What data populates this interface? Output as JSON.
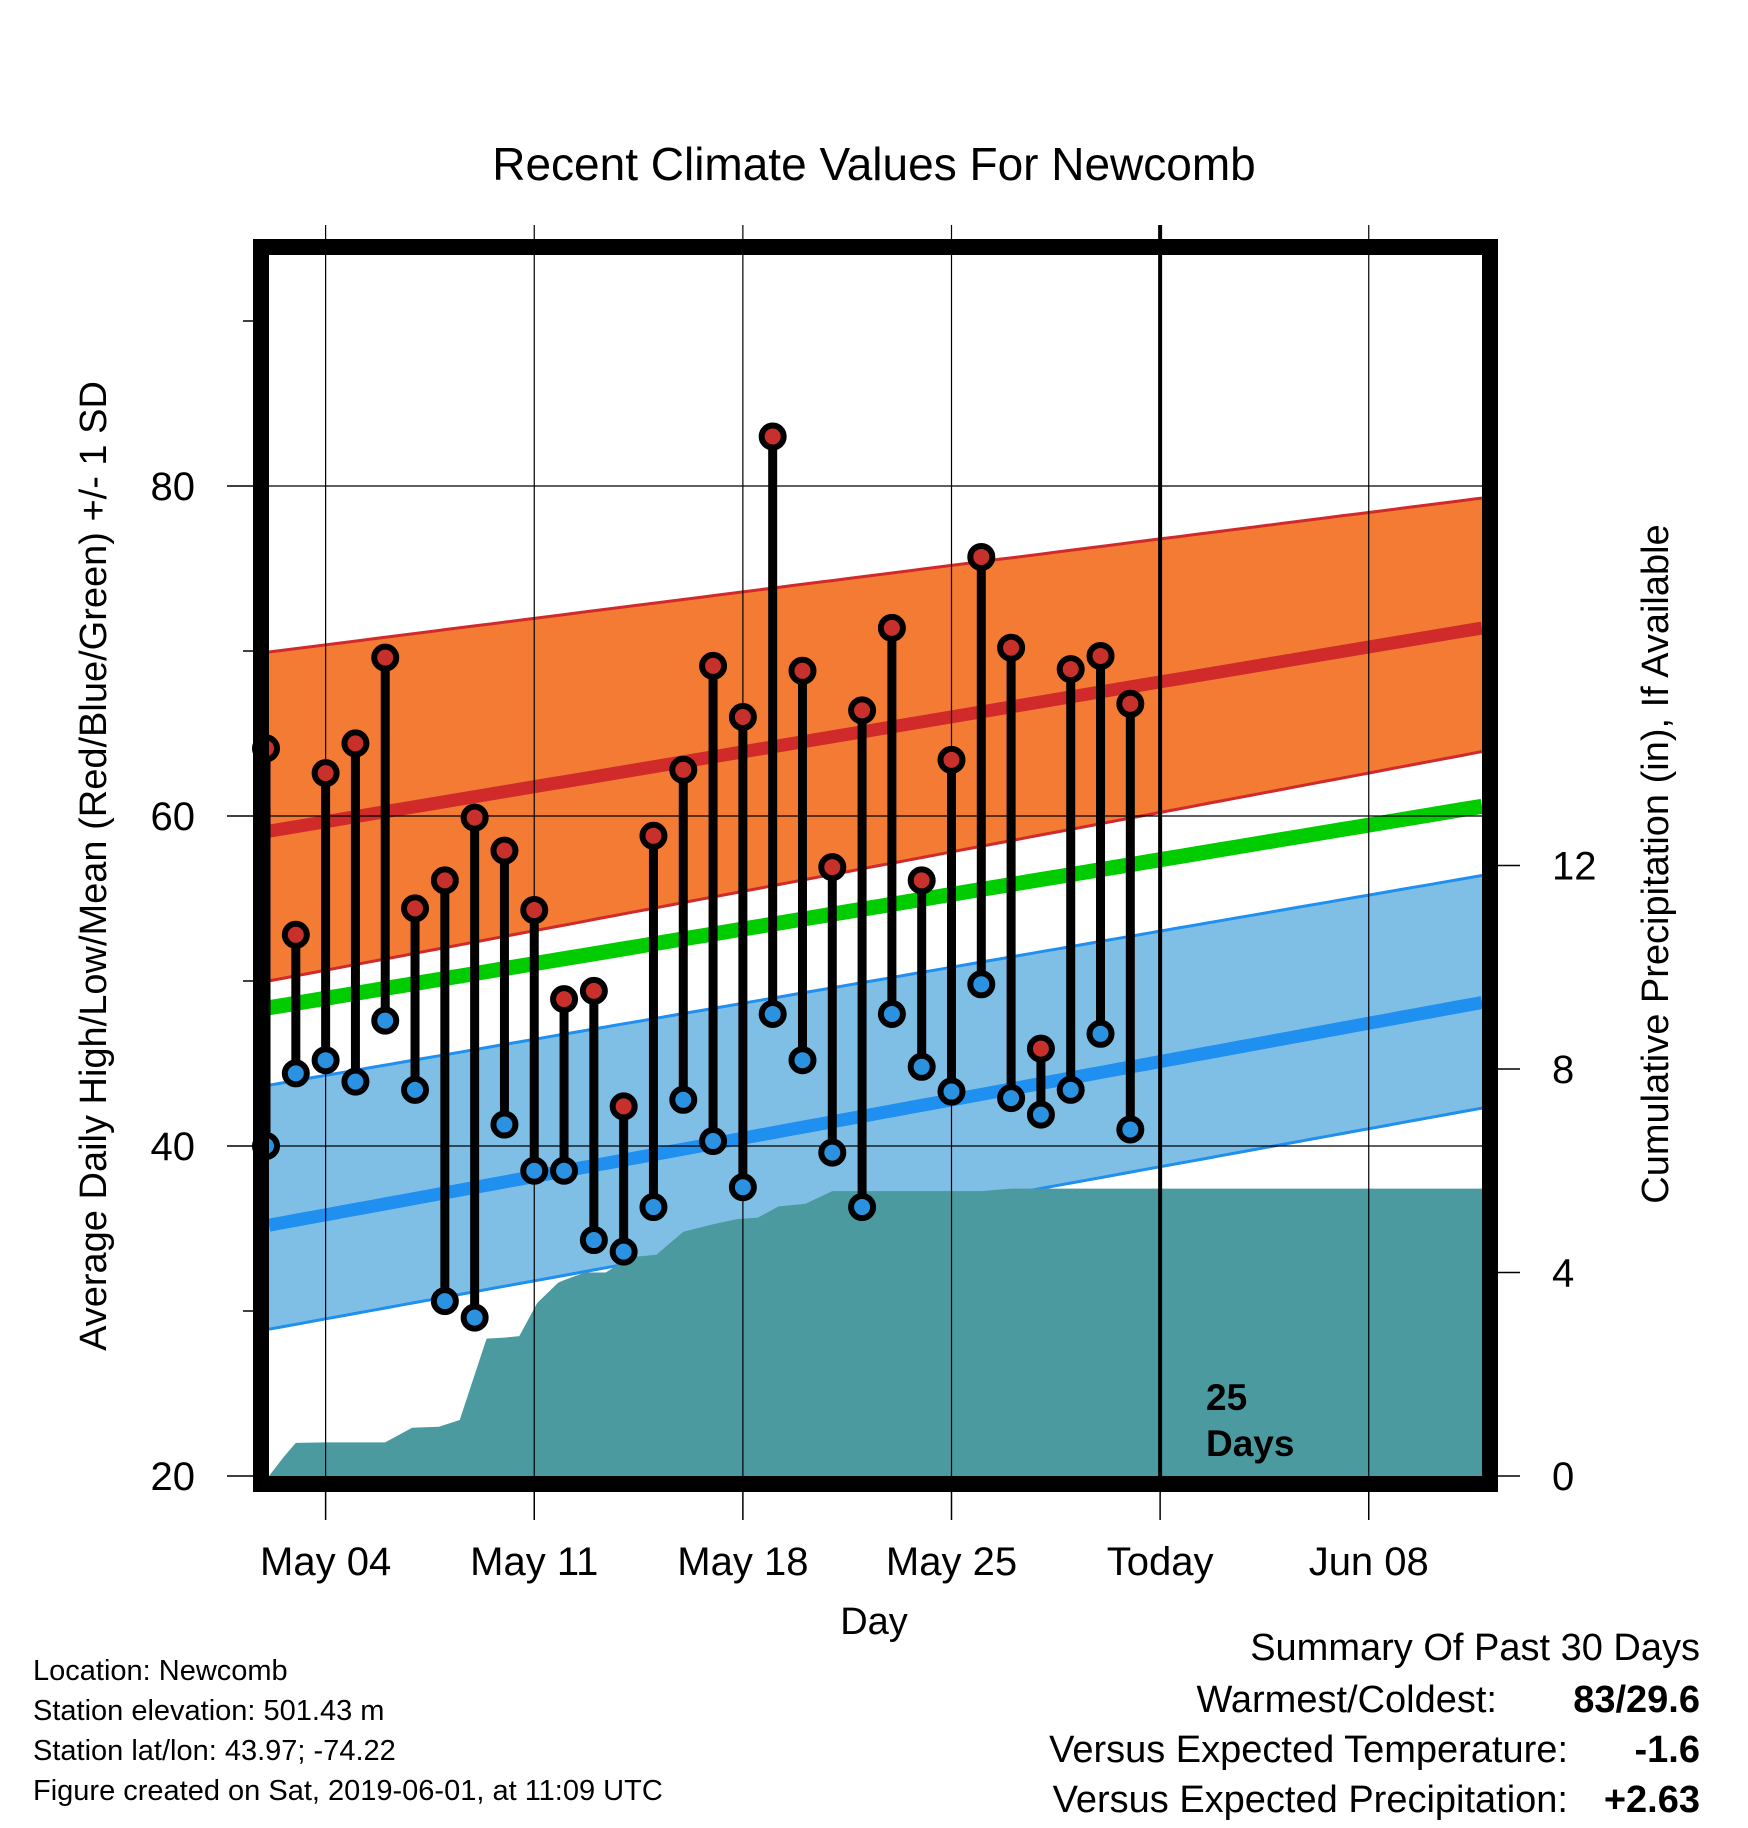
{
  "chart_data": {
    "type": "line",
    "title": "Recent Climate Values For Newcomb",
    "xlabel": "Day",
    "ylabel": "Average Daily High/Low/Mean (Red/Blue/Green) +/- 1 SD",
    "ylabel_right": "Cumulative Precipitation (in), If Available",
    "ylim": [
      20,
      94
    ],
    "ylim_right": [
      0,
      24
    ],
    "yticks": [
      20,
      40,
      60,
      80
    ],
    "yticks_right": [
      0,
      4,
      8,
      12
    ],
    "xlim": [
      -1.9,
      38.8
    ],
    "x_tick_labels": [
      {
        "x": 0,
        "label": "May 04"
      },
      {
        "x": 7,
        "label": "May 11"
      },
      {
        "x": 14,
        "label": "May 18"
      },
      {
        "x": 21,
        "label": "May 25"
      },
      {
        "x": 28,
        "label": "Today"
      },
      {
        "x": 35,
        "label": "Jun 08"
      }
    ],
    "today_x": 28,
    "today_label_top": "25",
    "today_label_bottom": "Days",
    "x_note": "x = days offset from May 04",
    "normals": {
      "x": [
        -2.5,
        38.5
      ],
      "high_mean": [
        58.9,
        71.3
      ],
      "high_upper": [
        69.8,
        79.2
      ],
      "high_lower": [
        49.8,
        63.8
      ],
      "avg_mean": [
        48.2,
        60.5
      ],
      "low_mean": [
        35.0,
        48.6
      ],
      "low_upper": [
        43.5,
        56.3
      ],
      "low_lower": [
        28.7,
        42.2
      ]
    },
    "daily": {
      "x": [
        -2,
        -1,
        0,
        1,
        2,
        3,
        4,
        5,
        6,
        7,
        8,
        9,
        10,
        11,
        12,
        13,
        14,
        15,
        16,
        17,
        18,
        19,
        20,
        21,
        22,
        23,
        24,
        25,
        26,
        27,
        28
      ],
      "high": [
        64.1,
        52.8,
        62.6,
        64.4,
        69.6,
        54.4,
        56.1,
        59.9,
        57.9,
        54.3,
        48.9,
        49.4,
        42.4,
        58.8,
        62.8,
        69.1,
        66.0,
        83.0,
        68.8,
        56.9,
        66.4,
        71.4,
        56.1,
        63.4,
        75.7,
        70.2,
        45.9,
        68.9,
        69.7,
        66.8,
        null
      ],
      "low": [
        40.0,
        44.4,
        45.2,
        43.9,
        47.6,
        43.4,
        30.6,
        29.6,
        41.3,
        38.5,
        38.5,
        34.3,
        33.6,
        36.3,
        42.8,
        40.3,
        37.5,
        48.0,
        45.2,
        39.6,
        36.3,
        48.0,
        44.8,
        43.3,
        49.8,
        42.9,
        41.9,
        43.4,
        46.8,
        41.0,
        null
      ]
    },
    "precip_cumulative": {
      "x": [
        -2.2,
        -1.4,
        -1.0,
        0,
        1,
        2,
        2.9,
        3.8,
        4.5,
        5.4,
        6.0,
        6.5,
        7.1,
        7.8,
        8.0,
        8.7,
        9.4,
        10.2,
        11.1,
        12.0,
        13.0,
        13.8,
        14.5,
        15.2,
        16.1,
        17.0,
        18.0,
        19.0,
        20.1,
        21.0,
        22.0,
        23.0,
        24.0,
        25.0,
        26.0,
        27.0,
        28.0,
        29.0,
        30.0,
        32.0,
        34.0,
        36.0,
        38.8
      ],
      "values": [
        0.0,
        0.38,
        0.65,
        0.66,
        0.66,
        0.66,
        0.95,
        0.97,
        1.1,
        2.7,
        2.72,
        2.75,
        3.4,
        3.8,
        3.85,
        4.0,
        4.0,
        4.3,
        4.35,
        4.8,
        4.95,
        5.05,
        5.08,
        5.3,
        5.35,
        5.6,
        5.6,
        5.6,
        5.6,
        5.6,
        5.6,
        5.65,
        5.65,
        5.65,
        5.65,
        5.65,
        5.65,
        5.65,
        5.65,
        5.65,
        5.65,
        5.65,
        5.65
      ]
    }
  },
  "colors": {
    "high_band": "#f47b33",
    "high_line": "#d12a2a",
    "low_band": "#80bfe5",
    "low_line": "#1f8ff0",
    "avg_line": "#00cc00",
    "precip": "#4a9aa0",
    "high_dot": "#c8302c",
    "low_dot": "#2a92e0",
    "anomaly_temp": "#2a8fea",
    "anomaly_precip": "#22bb22"
  },
  "station": {
    "location": "Location: Newcomb",
    "elevation": "Station elevation: 501.43 m",
    "latlon": "Station lat/lon: 43.97; -74.22",
    "created": "Figure created on Sat, 2019-06-01, at 11:09 UTC"
  },
  "summary": {
    "heading": "Summary Of Past 30 Days",
    "warm_cold_label": "Warmest/Coldest:",
    "warm_cold_value": "83/29.6",
    "temp_label": "Versus Expected Temperature:",
    "temp_value": "-1.6",
    "precip_label": "Versus Expected Precipitation:",
    "precip_value": "+2.63"
  }
}
